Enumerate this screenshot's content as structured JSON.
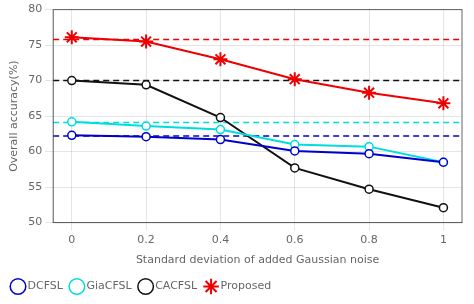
{
  "chart_data": {
    "type": "line",
    "x": [
      0,
      0.2,
      0.4,
      0.6,
      0.8,
      1.0
    ],
    "series": [
      {
        "name": "DCFSL",
        "color": "#0000cc",
        "marker": "circle",
        "values": [
          62.3,
          62.1,
          61.7,
          60.1,
          59.7,
          58.5
        ],
        "baseline": 62.2
      },
      {
        "name": "GiaCFSL",
        "color": "#00dddd",
        "marker": "circle",
        "values": [
          64.2,
          63.6,
          63.1,
          61.0,
          60.7,
          58.5
        ],
        "baseline": 64.1
      },
      {
        "name": "CACFSL",
        "color": "#111111",
        "marker": "circle",
        "values": [
          70.0,
          69.4,
          64.8,
          57.7,
          54.7,
          52.1
        ],
        "baseline": 70.0
      },
      {
        "name": "Proposed",
        "color": "#ee0000",
        "marker": "star",
        "values": [
          76.1,
          75.5,
          73.0,
          70.2,
          68.3,
          66.8
        ],
        "baseline": 75.8
      }
    ],
    "xlabel": "Standard deviation of added Gaussian noise",
    "ylabel": "Overall accuracy(%)",
    "xlim": [
      -0.05,
      1.05
    ],
    "xticks": [
      0,
      0.2,
      0.4,
      0.6,
      0.8,
      1
    ],
    "ylim": [
      50,
      80
    ],
    "yticks": [
      50,
      55,
      60,
      65,
      70,
      75,
      80
    ],
    "grid": true,
    "legend": "lower left"
  }
}
